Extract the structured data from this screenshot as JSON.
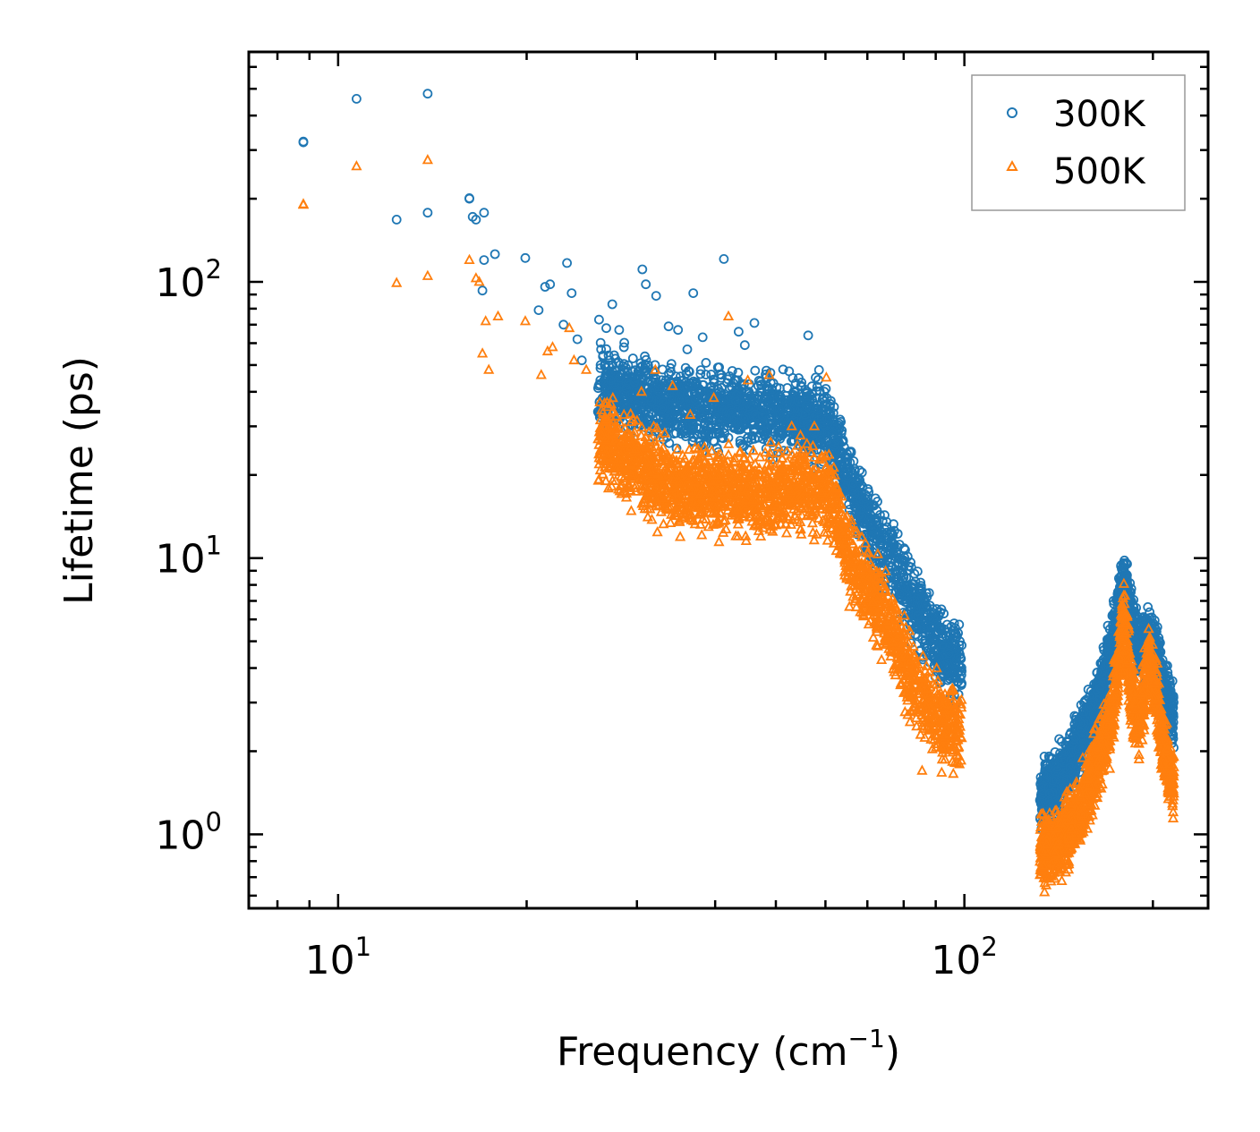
{
  "chart_data": {
    "type": "scatter",
    "xscale": "log",
    "yscale": "log",
    "xlabel_main": "Frequency (cm",
    "xlabel_sup": "−1",
    "xlabel_close": ")",
    "ylabel": "Lifetime (ps)",
    "xlim": [
      7.2,
      245
    ],
    "ylim": [
      0.54,
      680
    ],
    "x_ticks": [
      {
        "value": 10,
        "base": "10",
        "exp": "1"
      },
      {
        "value": 100,
        "base": "10",
        "exp": "2"
      }
    ],
    "y_ticks": [
      {
        "value": 1,
        "base": "10",
        "exp": "0"
      },
      {
        "value": 10,
        "base": "10",
        "exp": "1"
      },
      {
        "value": 100,
        "base": "10",
        "exp": "2"
      }
    ],
    "legend_position": "top-right",
    "series": [
      {
        "name": "300K",
        "marker": "circle",
        "color": "#1f77b4",
        "points": [
          [
            8.8,
            320
          ],
          [
            8.8,
            322
          ],
          [
            10.7,
            460
          ],
          [
            12.4,
            168
          ],
          [
            13.9,
            178
          ],
          [
            13.9,
            480
          ],
          [
            16.2,
            200
          ],
          [
            16.2,
            201
          ],
          [
            16.4,
            172
          ],
          [
            16.6,
            168
          ],
          [
            17.0,
            93
          ],
          [
            17.1,
            120
          ],
          [
            17.1,
            178
          ],
          [
            17.8,
            126
          ],
          [
            19.9,
            122
          ],
          [
            20.9,
            79
          ],
          [
            21.4,
            96
          ],
          [
            21.8,
            98
          ],
          [
            22.9,
            70
          ],
          [
            23.2,
            117
          ],
          [
            23.6,
            91
          ],
          [
            24.1,
            62
          ],
          [
            24.5,
            52
          ],
          [
            26.1,
            73
          ],
          [
            26.3,
            57
          ],
          [
            26.8,
            68
          ],
          [
            27.4,
            83
          ],
          [
            28.1,
            67
          ],
          [
            28.6,
            58
          ],
          [
            30.6,
            111
          ],
          [
            31.0,
            98
          ],
          [
            32.2,
            89
          ],
          [
            33.7,
            69
          ],
          [
            34.9,
            67
          ],
          [
            36.1,
            57
          ],
          [
            36.9,
            91
          ],
          [
            38.2,
            63
          ],
          [
            40.4,
            49
          ],
          [
            41.3,
            121
          ],
          [
            43.6,
            66
          ],
          [
            44.6,
            59
          ],
          [
            46.2,
            71
          ],
          [
            56.3,
            64
          ],
          [
            58.6,
            48
          ],
          [
            60.1,
            41
          ]
        ]
      },
      {
        "name": "500K",
        "marker": "triangle",
        "color": "#ff7f0e",
        "points": [
          [
            8.8,
            190
          ],
          [
            8.8,
            191
          ],
          [
            10.7,
            262
          ],
          [
            12.4,
            99
          ],
          [
            13.9,
            105
          ],
          [
            13.9,
            276
          ],
          [
            16.2,
            120
          ],
          [
            16.6,
            103
          ],
          [
            16.8,
            100
          ],
          [
            17.0,
            55
          ],
          [
            17.2,
            72
          ],
          [
            17.4,
            48
          ],
          [
            18.0,
            75
          ],
          [
            19.9,
            72
          ],
          [
            21.1,
            46
          ],
          [
            21.6,
            56
          ],
          [
            22.0,
            58
          ],
          [
            23.4,
            68
          ],
          [
            23.8,
            52
          ],
          [
            24.9,
            48
          ],
          [
            27.3,
            36
          ],
          [
            28.6,
            33
          ],
          [
            30.5,
            40
          ],
          [
            32.1,
            48
          ],
          [
            34.2,
            42
          ],
          [
            36.5,
            33
          ],
          [
            39.8,
            38
          ],
          [
            42.0,
            75
          ],
          [
            45.1,
            44
          ],
          [
            48.8,
            46
          ],
          [
            53.0,
            30
          ],
          [
            57.6,
            30
          ],
          [
            60.2,
            45
          ],
          [
            85.6,
            1.7
          ]
        ]
      }
    ],
    "clusters": [
      {
        "series": "300K",
        "seed": 11,
        "count": 2200,
        "x_range": [
          26,
          99
        ],
        "knots": [
          [
            26,
            42
          ],
          [
            34,
            36
          ],
          [
            45,
            34
          ],
          [
            56,
            33
          ],
          [
            61,
            28
          ],
          [
            66,
            18
          ],
          [
            72,
            12
          ],
          [
            78,
            9
          ],
          [
            84,
            6.5
          ],
          [
            92,
            4.6
          ],
          [
            99,
            4.1
          ]
        ],
        "log_spread": 0.11
      },
      {
        "series": "300K",
        "seed": 23,
        "count": 1700,
        "x_range": [
          132,
          216
        ],
        "knots": [
          [
            132,
            1.35
          ],
          [
            145,
            1.7
          ],
          [
            155,
            2.3
          ],
          [
            164,
            3.1
          ],
          [
            172,
            4.8
          ],
          [
            176,
            6.5
          ],
          [
            180,
            8.5
          ],
          [
            184,
            6.2
          ],
          [
            190,
            4.6
          ],
          [
            197,
            5.4
          ],
          [
            203,
            4.3
          ],
          [
            208,
            3.3
          ],
          [
            216,
            2.7
          ]
        ],
        "log_spread": 0.09
      },
      {
        "series": "500K",
        "seed": 37,
        "count": 2200,
        "x_range": [
          26,
          99
        ],
        "knots": [
          [
            26,
            27
          ],
          [
            34,
            18
          ],
          [
            45,
            17
          ],
          [
            56,
            18
          ],
          [
            61,
            17
          ],
          [
            66,
            10
          ],
          [
            72,
            7
          ],
          [
            78,
            5
          ],
          [
            84,
            3.4
          ],
          [
            92,
            2.6
          ],
          [
            99,
            2.3
          ]
        ],
        "log_spread": 0.12
      },
      {
        "series": "500K",
        "seed": 51,
        "count": 1700,
        "x_range": [
          132,
          216
        ],
        "knots": [
          [
            132,
            0.86
          ],
          [
            143,
            0.95
          ],
          [
            155,
            1.3
          ],
          [
            163,
            1.8
          ],
          [
            171,
            2.5
          ],
          [
            176,
            4.0
          ],
          [
            180,
            6.0
          ],
          [
            184,
            3.5
          ],
          [
            190,
            2.4
          ],
          [
            197,
            4.2
          ],
          [
            203,
            3.0
          ],
          [
            208,
            2.0
          ],
          [
            216,
            1.5
          ]
        ],
        "log_spread": 0.1
      }
    ]
  }
}
